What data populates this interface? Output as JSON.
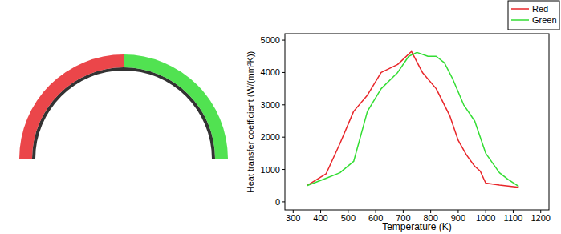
{
  "chart_data": {
    "type": "line",
    "x_label": "Temperature (K)",
    "y_label": "Heat transfer coefficient (W/(mm²K))",
    "xlim": [
      270,
      1230
    ],
    "xticks": [
      300,
      400,
      500,
      600,
      700,
      800,
      900,
      1000,
      1100,
      1200
    ],
    "ylim": [
      -250,
      5200
    ],
    "yticks": [
      0,
      1000,
      2000,
      3000,
      4000,
      5000
    ],
    "grid": false,
    "legend": "upper right",
    "series": [
      {
        "name": "Red",
        "color": "#e8262a",
        "x": [
          350,
          420,
          470,
          520,
          570,
          620,
          680,
          730,
          770,
          820,
          870,
          900,
          930,
          960,
          980,
          1000,
          1050,
          1120
        ],
        "values": [
          500,
          870,
          1800,
          2800,
          3300,
          4000,
          4250,
          4650,
          4000,
          3500,
          2650,
          1900,
          1450,
          1100,
          950,
          580,
          520,
          450
        ]
      },
      {
        "name": "Green",
        "color": "#33dd33",
        "x": [
          350,
          420,
          470,
          520,
          570,
          620,
          680,
          720,
          750,
          790,
          820,
          850,
          880,
          920,
          960,
          1000,
          1050,
          1080,
          1120
        ],
        "values": [
          500,
          730,
          900,
          1250,
          2800,
          3500,
          4000,
          4500,
          4620,
          4500,
          4500,
          4300,
          3800,
          3000,
          2500,
          1500,
          900,
          700,
          480
        ]
      }
    ]
  }
}
